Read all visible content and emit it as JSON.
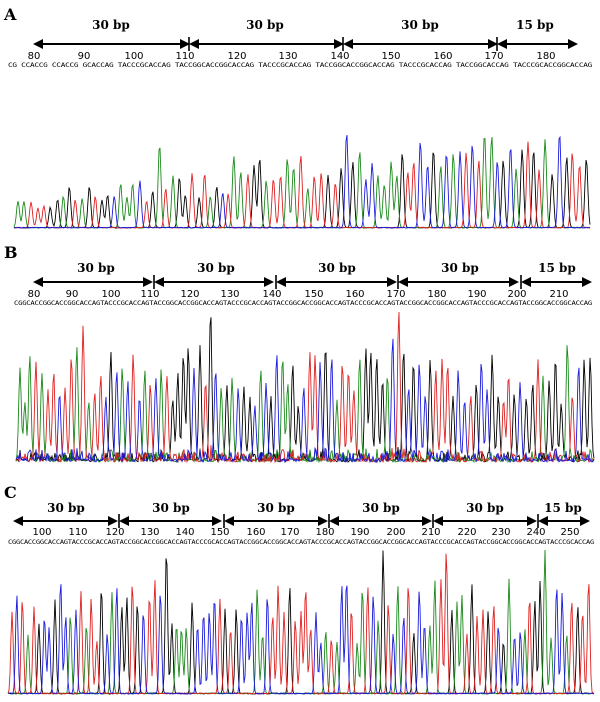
{
  "panels": [
    {
      "label": "A",
      "segments": [
        "30 bp",
        "30 bp",
        "30 bp",
        "15 bp"
      ],
      "ticks": [
        "80",
        "90",
        "100",
        "110",
        "120",
        "130",
        "140",
        "150",
        "160",
        "170",
        "180"
      ],
      "sequence": "CG CCACCG CCACCG GCACCAG TACCCGCACCAG TACCGGCACCGGCACCAG TACCCGCACCAG TACCGGCACCGGCACCAG TACCCGCACCAG TACCGGCACCAG TACCCGCACCGGCACCAG"
    },
    {
      "label": "B",
      "segments": [
        "30 bp",
        "30 bp",
        "30 bp",
        "30 bp",
        "15 bp"
      ],
      "ticks": [
        "80",
        "90",
        "100",
        "110",
        "120",
        "130",
        "140",
        "150",
        "160",
        "170",
        "180",
        "190",
        "200",
        "210"
      ],
      "sequence": "CGGCACCGGCACCGGCACCAGTACCCGCACCAGTACCGGCACCGGCACCAGTACCCGCACCAGTACCGGCACCGGCACCAGTACCCGCACCAGTACCGGCACCGGCACCAGTACCCGCACCAGTACCGGCACCGGCACCAG"
    },
    {
      "label": "C",
      "segments": [
        "30 bp",
        "30 bp",
        "30 bp",
        "30 bp",
        "30 bp",
        "15 bp"
      ],
      "ticks": [
        "100",
        "110",
        "120",
        "130",
        "140",
        "150",
        "160",
        "170",
        "180",
        "190",
        "200",
        "210",
        "220",
        "230",
        "240",
        "250"
      ],
      "sequence": "CGGCACCGGCACCAGTACCCGCACCAGTACCGGCACCGGCACCAGTACCCGCACCAGTACCGGCACCGGCACCAGTACCCGCACCAGTACCGGCACCGGCACCAGTACCCGCACCAGTACCGGCACCGGCACCAGTACCCGCACCAG"
    }
  ],
  "trace_colors": {
    "G": "#000000",
    "A": "#1a8a1a",
    "T": "#e02020",
    "C": "#1a1adc"
  }
}
